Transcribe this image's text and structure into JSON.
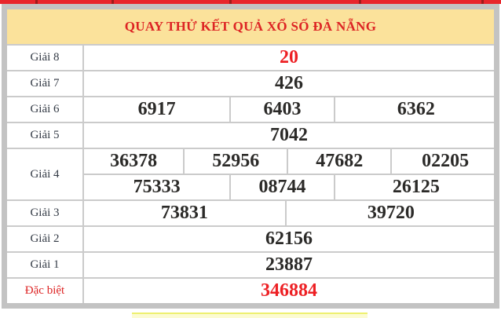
{
  "header": {
    "title": "QUAY THỬ KẾT QUẢ XỔ SỐ ĐÀ NẴNG"
  },
  "table": {
    "rows": [
      {
        "label": "Giải 8",
        "label_red": false,
        "value_red": true,
        "groups": [
          [
            "20"
          ]
        ]
      },
      {
        "label": "Giải 7",
        "label_red": false,
        "value_red": false,
        "groups": [
          [
            "426"
          ]
        ]
      },
      {
        "label": "Giải 6",
        "label_red": false,
        "value_red": false,
        "groups": [
          [
            "6917",
            "6403",
            "6362"
          ]
        ]
      },
      {
        "label": "Giải 5",
        "label_red": false,
        "value_red": false,
        "groups": [
          [
            "7042"
          ]
        ]
      },
      {
        "label": "Giải 4",
        "label_red": false,
        "value_red": false,
        "groups": [
          [
            "36378",
            "52956",
            "47682",
            "02205"
          ],
          [
            "75333",
            "08744",
            "26125"
          ]
        ]
      },
      {
        "label": "Giải 3",
        "label_red": false,
        "value_red": false,
        "groups": [
          [
            "73831",
            "39720"
          ]
        ]
      },
      {
        "label": "Giải 2",
        "label_red": false,
        "value_red": false,
        "groups": [
          [
            "62156"
          ]
        ]
      },
      {
        "label": "Giải 1",
        "label_red": false,
        "value_red": false,
        "groups": [
          [
            "23887"
          ]
        ]
      },
      {
        "label": "Đặc biệt",
        "label_red": true,
        "value_red": true,
        "groups": [
          [
            "346884"
          ]
        ]
      }
    ]
  },
  "colors": {
    "nav_red": "#e8262c",
    "header_yellow": "#fbe29b",
    "title_red": "#dd2424",
    "value_red": "#ed2024",
    "value_dark": "#2b2a28",
    "border_gray": "#cbcbcb",
    "outer_border_gray": "#c3c3c3",
    "bottom_strip_yellow": "#fcfbd1"
  }
}
